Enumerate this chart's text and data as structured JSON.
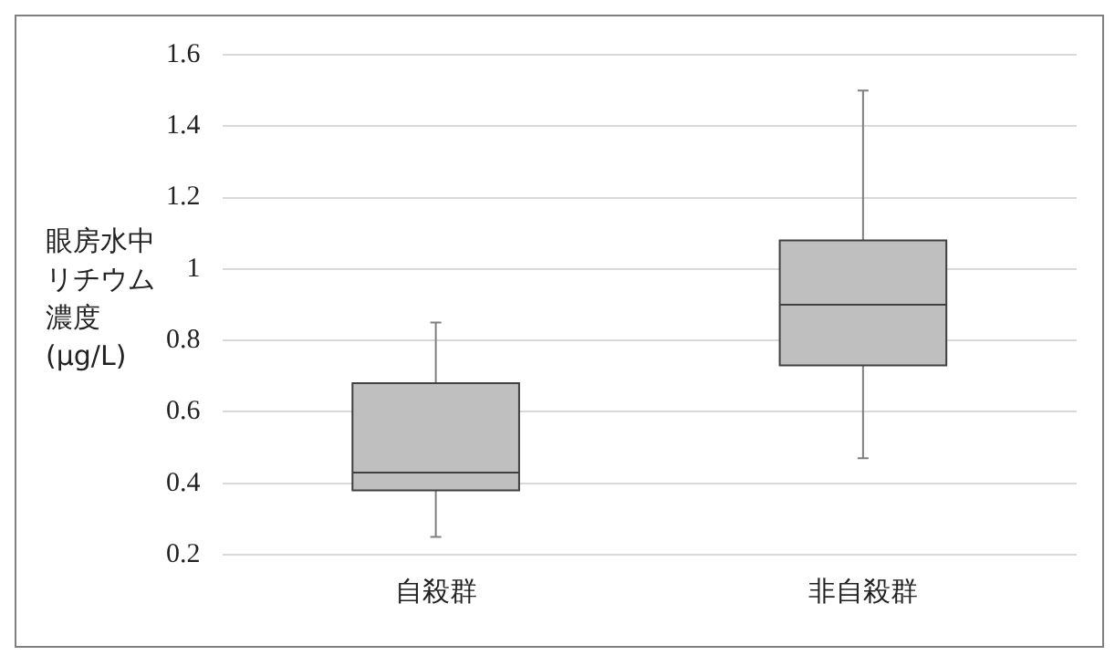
{
  "chart_data": {
    "type": "box",
    "ylabel": "眼房水中リチウム濃度(μg/L)",
    "categories": [
      "自殺群",
      "非自殺群"
    ],
    "boxes": [
      {
        "low": 0.25,
        "q1": 0.38,
        "median": 0.43,
        "q3": 0.68,
        "high": 0.85
      },
      {
        "low": 0.47,
        "q1": 0.73,
        "median": 0.9,
        "q3": 1.08,
        "high": 1.5
      }
    ],
    "color": "#bfbfbf",
    "ylim": [
      0.2,
      1.6
    ],
    "yticks": [
      0.2,
      0.4,
      0.6,
      0.8,
      1,
      1.2,
      1.4,
      1.6
    ],
    "grid": "y",
    "legend": false
  }
}
